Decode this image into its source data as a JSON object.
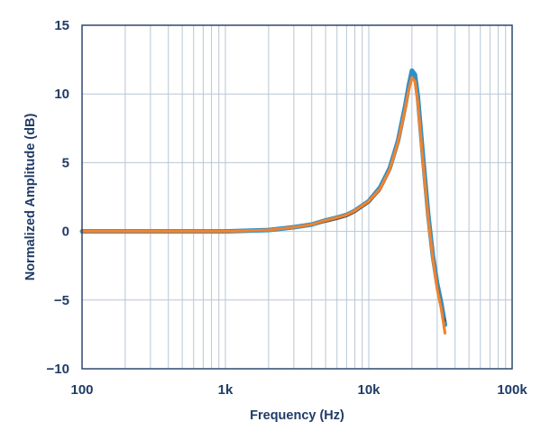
{
  "chart_data": {
    "type": "line",
    "title": "",
    "xlabel": "Frequency (Hz)",
    "ylabel": "Normalized Amplitude (dB)",
    "x_scale": "log",
    "xlim": [
      100,
      100000
    ],
    "ylim": [
      -10,
      15
    ],
    "grid": true,
    "x_tick_labels": [
      "100",
      "1k",
      "10k",
      "100k"
    ],
    "y_tick_labels": [
      "15",
      "10",
      "5",
      "0",
      "−5",
      "−10"
    ],
    "colors": {
      "grid": "#b9c6d3",
      "axis": "#1f3b66",
      "blue": "#2d8fc9",
      "dark": "#4a4f55",
      "orange": "#f0832e"
    },
    "series": [
      {
        "color": "#2d8fc9",
        "x": [
          100,
          200,
          500,
          1000,
          2000,
          3000,
          4000,
          5000,
          6000,
          7000,
          8000,
          10000,
          12000,
          14000,
          16000,
          18000,
          19000,
          20000,
          21000,
          22000,
          24000,
          26000,
          28000,
          30000,
          32000,
          33000,
          34000
        ],
        "y": [
          0.0,
          0.0,
          0.0,
          0.0,
          0.1,
          0.3,
          0.5,
          0.8,
          1.0,
          1.2,
          1.5,
          2.2,
          3.2,
          4.6,
          6.6,
          9.2,
          10.6,
          11.7,
          11.4,
          9.8,
          5.2,
          1.2,
          -1.8,
          -3.8,
          -5.2,
          -6.0,
          -6.8
        ]
      },
      {
        "color": "#4a4f55",
        "x": [
          100,
          200,
          500,
          1000,
          2000,
          3000,
          4000,
          5000,
          6000,
          7000,
          8000,
          10000,
          12000,
          14000,
          16000,
          18000,
          19000,
          20000,
          21000,
          22000,
          24000,
          26000,
          28000,
          30000,
          32000,
          33000,
          34000
        ],
        "y": [
          0.0,
          0.0,
          0.0,
          0.0,
          0.1,
          0.3,
          0.5,
          0.7,
          0.9,
          1.1,
          1.4,
          2.1,
          3.0,
          4.4,
          6.4,
          8.9,
          10.2,
          11.2,
          10.9,
          9.4,
          5.0,
          1.0,
          -1.9,
          -3.9,
          -5.4,
          -6.2,
          -6.5
        ]
      },
      {
        "color": "#f0832e",
        "x": [
          100,
          200,
          500,
          1000,
          2000,
          3000,
          4000,
          5000,
          6000,
          7000,
          8000,
          10000,
          12000,
          14000,
          16000,
          18000,
          19000,
          20000,
          21000,
          22000,
          24000,
          26000,
          28000,
          30000,
          32000,
          33000,
          34000
        ],
        "y": [
          0.0,
          0.0,
          0.0,
          0.0,
          0.1,
          0.3,
          0.5,
          0.8,
          1.0,
          1.2,
          1.5,
          2.2,
          3.1,
          4.5,
          6.5,
          9.0,
          10.3,
          11.2,
          10.9,
          9.3,
          4.8,
          0.9,
          -2.0,
          -4.2,
          -5.6,
          -6.5,
          -7.4
        ]
      }
    ]
  }
}
